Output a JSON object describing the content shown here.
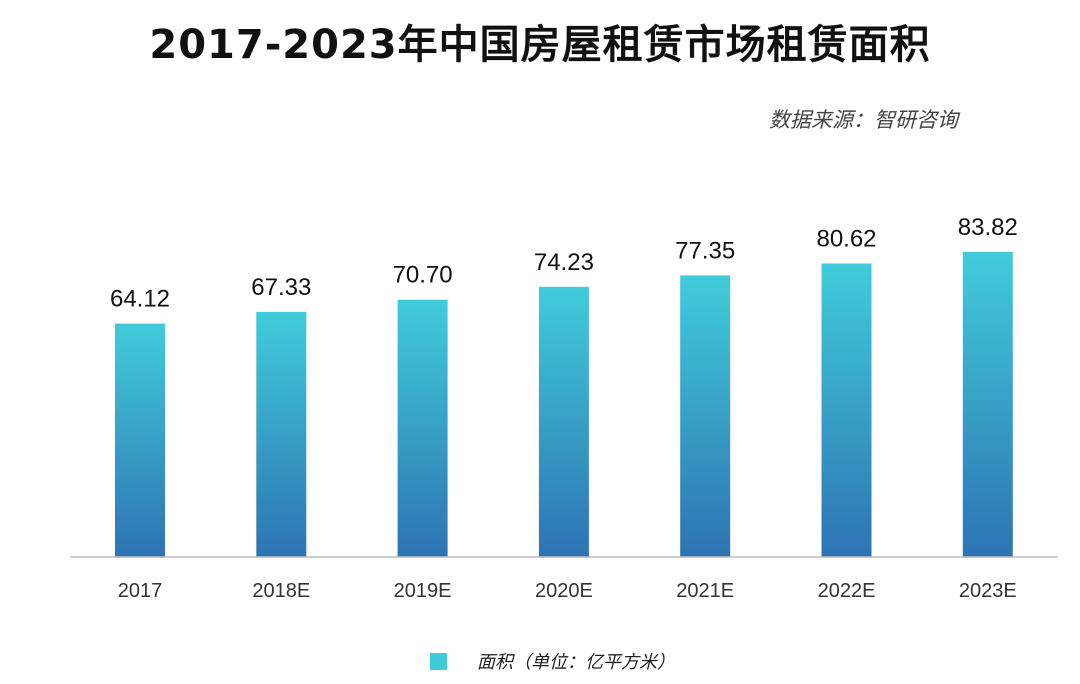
{
  "chart_data": {
    "type": "bar",
    "title": "2017-2023年中国房屋租赁市场租赁面积",
    "source": "数据来源：智研咨询",
    "categories": [
      "2017",
      "2018E",
      "2019E",
      "2020E",
      "2021E",
      "2022E",
      "2023E"
    ],
    "series": [
      {
        "name": "面积（单位：亿平方米）",
        "values": [
          64.12,
          67.33,
          70.7,
          74.23,
          77.35,
          80.62,
          83.82
        ]
      }
    ],
    "value_labels": [
      "64.12",
      "67.33",
      "70.70",
      "74.23",
      "77.35",
      "80.62",
      "83.82"
    ],
    "xlabel": "",
    "ylabel": "",
    "ylim": [
      0,
      100
    ],
    "grid": false,
    "legend_position": "bottom-center"
  },
  "colors": {
    "bar_top": "#41CCDA",
    "bar_bottom": "#2E73B3",
    "axis": "#BBBBBB",
    "legend_swatch": "#3ECCD8"
  }
}
